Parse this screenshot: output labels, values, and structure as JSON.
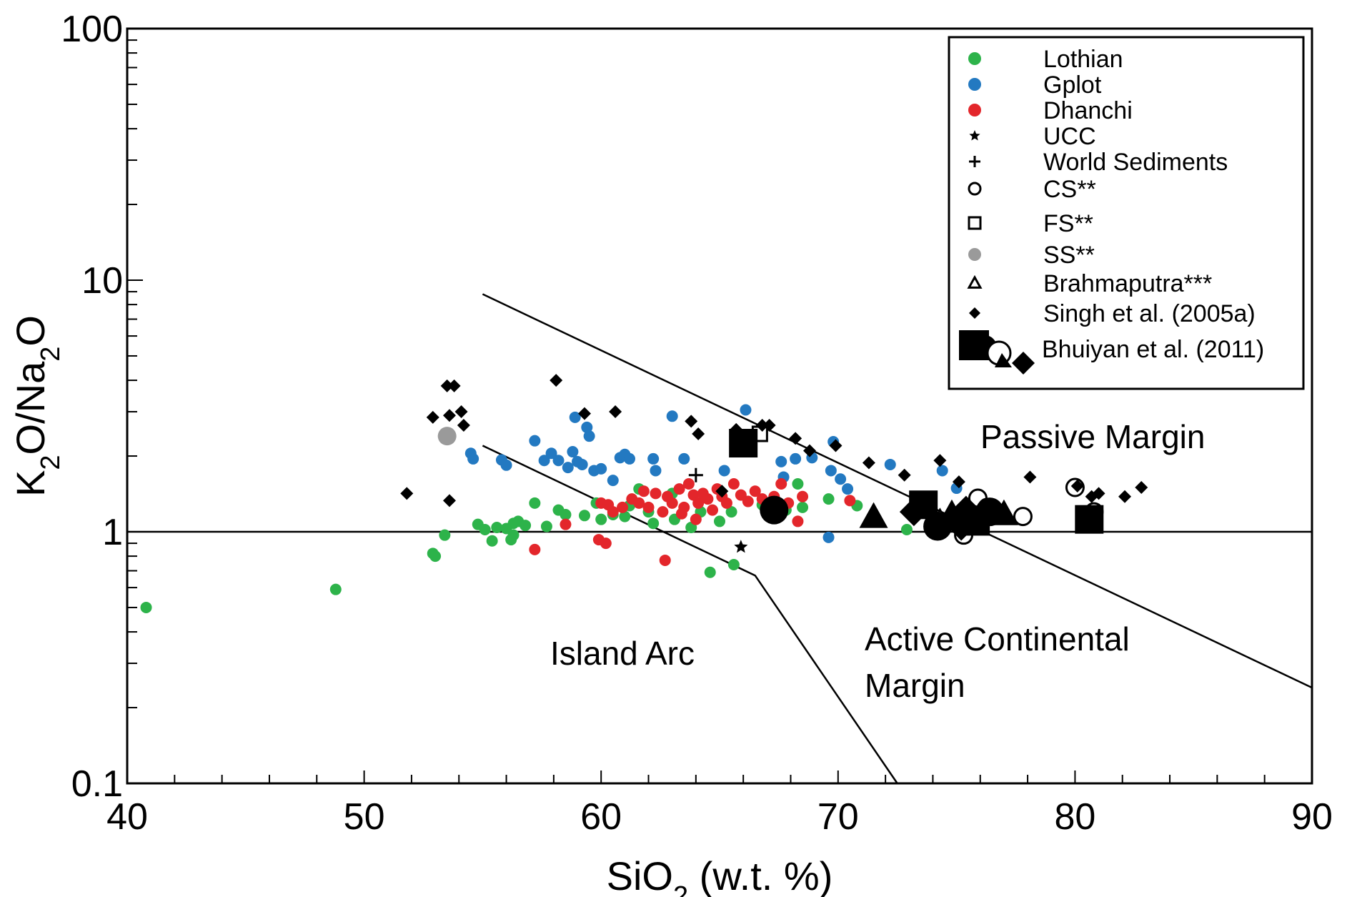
{
  "chart_data": {
    "type": "scatter",
    "xlabel": "SiO2 (w.t. %)",
    "ylabel": "K2O/Na2O",
    "xlim": [
      40,
      90
    ],
    "ylim": [
      0.1,
      100
    ],
    "yscale": "log",
    "grid": false,
    "legend_position": "top-right",
    "x_ticks": [
      "40",
      "50",
      "60",
      "70",
      "80",
      "90"
    ],
    "y_ticks": [
      "0.1",
      "1",
      "10",
      "100"
    ],
    "region_labels": {
      "passive": "Passive Margin",
      "island": "Island Arc",
      "active_line1": "Active Continental",
      "active_line2": "Margin"
    },
    "boundary_lines": [
      {
        "points": [
          [
            55,
            8.8
          ],
          [
            90,
            0.24
          ]
        ]
      },
      {
        "points": [
          [
            55,
            2.2
          ],
          [
            66.5,
            0.67
          ],
          [
            72.5,
            0.1
          ]
        ]
      },
      {
        "points": [
          [
            40,
            1
          ],
          [
            90,
            1
          ]
        ]
      }
    ],
    "series": [
      {
        "name": "Lothian",
        "marker": "circle",
        "color": "#2db34a",
        "size": 8,
        "points": [
          [
            40.8,
            0.5
          ],
          [
            48.8,
            0.59
          ],
          [
            52.9,
            0.82
          ],
          [
            53.0,
            0.8
          ],
          [
            53.4,
            0.97
          ],
          [
            54.8,
            1.07
          ],
          [
            55.1,
            1.02
          ],
          [
            55.4,
            0.92
          ],
          [
            55.6,
            1.04
          ],
          [
            56.0,
            1.03
          ],
          [
            56.3,
            1.08
          ],
          [
            56.5,
            1.1
          ],
          [
            56.8,
            1.06
          ],
          [
            56.3,
            0.97
          ],
          [
            56.2,
            0.93
          ],
          [
            57.2,
            1.3
          ],
          [
            57.7,
            1.05
          ],
          [
            58.2,
            1.22
          ],
          [
            58.5,
            1.17
          ],
          [
            59.3,
            1.16
          ],
          [
            60.0,
            1.12
          ],
          [
            60.5,
            1.17
          ],
          [
            61.2,
            1.27
          ],
          [
            61.6,
            1.48
          ],
          [
            62.0,
            1.2
          ],
          [
            62.2,
            1.08
          ],
          [
            63.1,
            1.12
          ],
          [
            63.8,
            1.04
          ],
          [
            64.2,
            1.2
          ],
          [
            64.6,
            0.69
          ],
          [
            65.0,
            1.1
          ],
          [
            65.5,
            1.2
          ],
          [
            65.6,
            0.74
          ],
          [
            66.8,
            1.28
          ],
          [
            67.4,
            1.3
          ],
          [
            67.8,
            1.22
          ],
          [
            68.3,
            1.55
          ],
          [
            68.5,
            1.25
          ],
          [
            69.6,
            1.35
          ],
          [
            70.8,
            1.27
          ],
          [
            72.9,
            1.02
          ],
          [
            63.0,
            1.42
          ],
          [
            61.0,
            1.15
          ],
          [
            59.8,
            1.3
          ]
        ]
      },
      {
        "name": "Gplot",
        "marker": "circle",
        "color": "#2379c1",
        "size": 8,
        "points": [
          [
            54.5,
            2.05
          ],
          [
            54.6,
            1.95
          ],
          [
            55.8,
            1.93
          ],
          [
            56.0,
            1.84
          ],
          [
            57.2,
            2.3
          ],
          [
            57.6,
            1.92
          ],
          [
            57.9,
            2.05
          ],
          [
            58.2,
            1.92
          ],
          [
            58.6,
            1.8
          ],
          [
            58.8,
            2.08
          ],
          [
            59.0,
            1.9
          ],
          [
            59.2,
            1.85
          ],
          [
            59.5,
            2.4
          ],
          [
            59.7,
            1.75
          ],
          [
            60.0,
            1.78
          ],
          [
            58.9,
            2.85
          ],
          [
            59.4,
            2.6
          ],
          [
            60.5,
            1.6
          ],
          [
            60.8,
            1.97
          ],
          [
            61.0,
            2.03
          ],
          [
            61.2,
            1.95
          ],
          [
            62.2,
            1.95
          ],
          [
            62.3,
            1.75
          ],
          [
            63.0,
            2.88
          ],
          [
            63.5,
            1.95
          ],
          [
            65.2,
            1.75
          ],
          [
            66.1,
            3.05
          ],
          [
            65.9,
            2.25
          ],
          [
            67.6,
            1.9
          ],
          [
            67.7,
            1.65
          ],
          [
            68.2,
            1.95
          ],
          [
            68.9,
            1.97
          ],
          [
            69.7,
            1.75
          ],
          [
            69.8,
            2.28
          ],
          [
            70.1,
            1.62
          ],
          [
            70.4,
            1.48
          ],
          [
            72.2,
            1.85
          ],
          [
            74.4,
            1.75
          ],
          [
            75.0,
            1.49
          ],
          [
            69.6,
            0.95
          ]
        ]
      },
      {
        "name": "Dhanchi",
        "marker": "circle",
        "color": "#e3262b",
        "size": 8,
        "points": [
          [
            57.2,
            0.85
          ],
          [
            58.5,
            1.07
          ],
          [
            59.9,
            0.93
          ],
          [
            60.0,
            1.3
          ],
          [
            60.3,
            1.28
          ],
          [
            60.5,
            1.2
          ],
          [
            60.9,
            1.25
          ],
          [
            61.3,
            1.35
          ],
          [
            61.6,
            1.3
          ],
          [
            61.8,
            1.45
          ],
          [
            62.0,
            1.25
          ],
          [
            62.3,
            1.42
          ],
          [
            62.6,
            1.2
          ],
          [
            62.8,
            1.38
          ],
          [
            63.0,
            1.3
          ],
          [
            63.3,
            1.48
          ],
          [
            63.5,
            1.25
          ],
          [
            63.7,
            1.55
          ],
          [
            63.9,
            1.4
          ],
          [
            64.1,
            1.3
          ],
          [
            64.3,
            1.42
          ],
          [
            64.5,
            1.35
          ],
          [
            64.7,
            1.22
          ],
          [
            64.9,
            1.48
          ],
          [
            65.1,
            1.38
          ],
          [
            65.3,
            1.3
          ],
          [
            65.6,
            1.55
          ],
          [
            65.9,
            1.4
          ],
          [
            66.2,
            1.32
          ],
          [
            66.5,
            1.45
          ],
          [
            66.8,
            1.35
          ],
          [
            67.0,
            1.2
          ],
          [
            67.3,
            1.38
          ],
          [
            67.6,
            1.55
          ],
          [
            67.9,
            1.3
          ],
          [
            68.3,
            1.1
          ],
          [
            68.5,
            1.38
          ],
          [
            62.7,
            0.77
          ],
          [
            60.2,
            0.9
          ],
          [
            63.4,
            1.18
          ],
          [
            64.0,
            1.12
          ],
          [
            70.5,
            1.33
          ]
        ]
      },
      {
        "name": "UCC",
        "marker": "star",
        "color": "#000000",
        "size": 10,
        "points": [
          [
            65.9,
            0.87
          ]
        ]
      },
      {
        "name": "World Sediments",
        "marker": "plus",
        "color": "#000000",
        "size": 10,
        "points": [
          [
            64.0,
            1.68
          ]
        ]
      },
      {
        "name": "CS**",
        "marker": "circle-open",
        "color": "#000000",
        "size": 12,
        "points": [
          [
            75.3,
            0.97
          ],
          [
            75.9,
            1.36
          ],
          [
            76.3,
            1.25
          ],
          [
            77.8,
            1.15
          ],
          [
            80.0,
            1.5
          ],
          [
            80.8,
            1.2
          ]
        ]
      },
      {
        "name": "FS**",
        "marker": "square-open",
        "color": "#000000",
        "size": 10,
        "points": [
          [
            66.7,
            2.45
          ]
        ]
      },
      {
        "name": "SS**",
        "marker": "circle",
        "color": "#9a9a9a",
        "size": 13,
        "points": [
          [
            53.5,
            2.4
          ]
        ]
      },
      {
        "name": "Brahmaputra***",
        "marker": "triangle-open",
        "color": "#000000",
        "size": 12,
        "points": [
          [
            74.3,
            1.13
          ]
        ]
      },
      {
        "name": "Singh et al. (2005a)",
        "marker": "diamond",
        "color": "#000000",
        "size": 9,
        "points": [
          [
            51.8,
            1.42
          ],
          [
            52.9,
            2.85
          ],
          [
            53.5,
            3.8
          ],
          [
            53.8,
            3.8
          ],
          [
            53.6,
            2.9
          ],
          [
            54.1,
            3.0
          ],
          [
            54.2,
            2.65
          ],
          [
            53.6,
            1.33
          ],
          [
            58.1,
            4.0
          ],
          [
            59.3,
            2.95
          ],
          [
            60.6,
            3.0
          ],
          [
            63.8,
            2.75
          ],
          [
            64.1,
            2.45
          ],
          [
            65.7,
            2.55
          ],
          [
            66.8,
            2.65
          ],
          [
            67.1,
            2.65
          ],
          [
            68.2,
            2.35
          ],
          [
            68.8,
            2.1
          ],
          [
            69.9,
            2.2
          ],
          [
            71.3,
            1.88
          ],
          [
            72.8,
            1.68
          ],
          [
            74.3,
            1.92
          ],
          [
            75.1,
            1.58
          ],
          [
            78.1,
            1.65
          ],
          [
            80.1,
            1.52
          ],
          [
            80.7,
            1.38
          ],
          [
            81.0,
            1.42
          ],
          [
            82.1,
            1.38
          ],
          [
            82.8,
            1.5
          ],
          [
            65.1,
            1.45
          ]
        ]
      },
      {
        "name": "Bhuiyan et al. (2011)",
        "marker": "mixed-large",
        "color": "#000000",
        "size": 20,
        "points": [
          [
            66.0,
            2.25
          ],
          [
            67.3,
            1.22
          ],
          [
            71.5,
            1.15
          ],
          [
            73.2,
            1.2
          ],
          [
            73.6,
            1.28
          ],
          [
            74.2,
            1.05
          ],
          [
            74.8,
            1.18
          ],
          [
            75.4,
            1.22
          ],
          [
            75.8,
            1.1
          ],
          [
            76.4,
            1.2
          ],
          [
            77.0,
            1.18
          ],
          [
            75.2,
            1.05
          ],
          [
            80.6,
            1.12
          ]
        ]
      }
    ]
  }
}
